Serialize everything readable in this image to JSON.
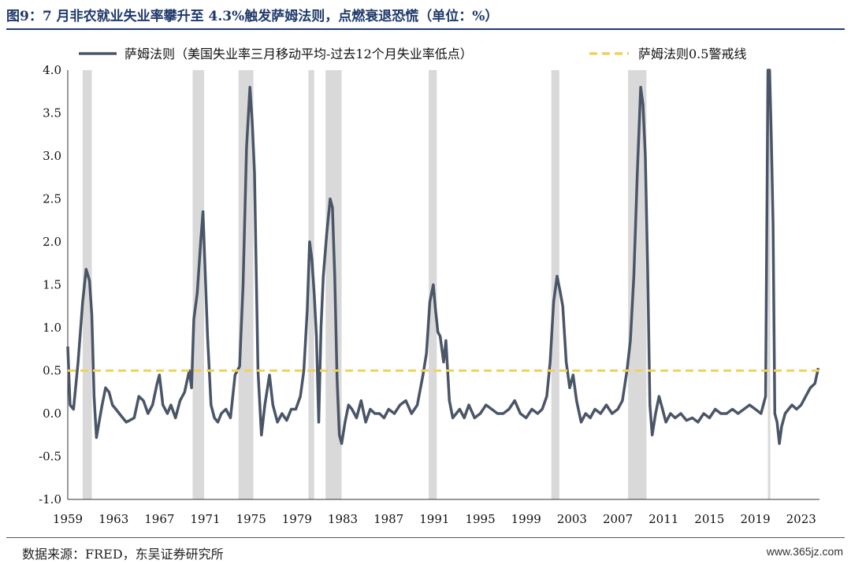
{
  "title": "图9：7 月非农就业失业率攀升至 4.3%触发萨姆法则，点燃衰退恐慌（单位：%）",
  "source": "数据来源：FRED，东吴证券研究所",
  "watermark": "www.365jz.com",
  "colors": {
    "line": "#4a5568",
    "threshold": "#f2d15a",
    "recession": "#d9d9d9",
    "title": "#1f3a6b"
  },
  "chart_data": {
    "type": "line",
    "xlabel": "",
    "ylabel": "",
    "xlim": [
      1959.0,
      2024.6
    ],
    "ylim": [
      -1.0,
      4.0
    ],
    "yticks": [
      4.0,
      3.5,
      3.0,
      2.5,
      2.0,
      1.5,
      1.0,
      0.5,
      0.0,
      -0.5,
      -1.0
    ],
    "ytick_labels": [
      "4.0",
      "3.5",
      "3.0",
      "2.5",
      "2.0",
      "1.5",
      "1.0",
      "0.5",
      "0.0",
      "-0.5",
      "-1.0"
    ],
    "xtick_labels": [
      "1959",
      "1963",
      "1967",
      "1971",
      "1975",
      "1979",
      "1983",
      "1987",
      "1991",
      "1995",
      "1999",
      "2003",
      "2007",
      "2011",
      "2015",
      "2019",
      "2023"
    ],
    "legend_position": "top",
    "series": [
      {
        "name": "萨姆法则（美国失业率三月移动平均-过去12个月失业率低点）",
        "style": "solid",
        "x": [
          1959.0,
          1959.2,
          1959.5,
          1959.9,
          1960.3,
          1960.6,
          1960.9,
          1961.1,
          1961.3,
          1961.5,
          1961.8,
          1962.0,
          1962.3,
          1962.6,
          1962.9,
          1963.2,
          1963.5,
          1963.8,
          1964.1,
          1964.4,
          1964.8,
          1965.2,
          1965.6,
          1966.0,
          1966.4,
          1966.8,
          1967.0,
          1967.3,
          1967.7,
          1968.0,
          1968.4,
          1968.8,
          1969.2,
          1969.6,
          1969.8,
          1970.0,
          1970.3,
          1970.6,
          1970.8,
          1970.95,
          1971.2,
          1971.5,
          1971.8,
          1972.1,
          1972.4,
          1972.8,
          1973.2,
          1973.6,
          1974.0,
          1974.3,
          1974.6,
          1974.9,
          1975.1,
          1975.3,
          1975.6,
          1975.9,
          1976.2,
          1976.6,
          1976.9,
          1977.3,
          1977.7,
          1978.1,
          1978.5,
          1978.9,
          1979.3,
          1979.6,
          1979.9,
          1980.1,
          1980.3,
          1980.5,
          1980.7,
          1980.9,
          1981.1,
          1981.3,
          1981.6,
          1981.9,
          1982.1,
          1982.3,
          1982.5,
          1982.7,
          1982.9,
          1983.2,
          1983.5,
          1983.8,
          1984.2,
          1984.6,
          1985.0,
          1985.4,
          1985.8,
          1986.2,
          1986.6,
          1987.0,
          1987.5,
          1988.0,
          1988.5,
          1989.0,
          1989.5,
          1990.0,
          1990.3,
          1990.6,
          1990.9,
          1991.1,
          1991.3,
          1991.5,
          1991.8,
          1992.0,
          1992.3,
          1992.6,
          1992.9,
          1993.2,
          1993.6,
          1994.0,
          1994.5,
          1995.0,
          1995.5,
          1996.0,
          1996.5,
          1997.0,
          1997.5,
          1998.0,
          1998.5,
          1999.0,
          1999.5,
          2000.0,
          2000.4,
          2000.8,
          2001.1,
          2001.4,
          2001.7,
          2002.0,
          2002.2,
          2002.5,
          2002.8,
          2003.1,
          2003.4,
          2003.8,
          2004.2,
          2004.6,
          2005.0,
          2005.5,
          2006.0,
          2006.5,
          2007.0,
          2007.4,
          2007.8,
          2008.1,
          2008.4,
          2008.7,
          2009.0,
          2009.2,
          2009.4,
          2009.6,
          2009.8,
          2010.0,
          2010.3,
          2010.6,
          2010.9,
          2011.2,
          2011.6,
          2012.0,
          2012.5,
          2013.0,
          2013.5,
          2014.0,
          2014.5,
          2015.0,
          2015.5,
          2016.0,
          2016.5,
          2017.0,
          2017.5,
          2018.0,
          2018.5,
          2019.0,
          2019.5,
          2019.9,
          2020.1,
          2020.25,
          2020.4,
          2020.55,
          2020.7,
          2020.9,
          2021.1,
          2021.3,
          2021.6,
          2021.9,
          2022.2,
          2022.6,
          2023.0,
          2023.4,
          2023.8,
          2024.2,
          2024.5
        ],
        "values": [
          0.78,
          0.1,
          0.05,
          0.6,
          1.3,
          1.68,
          1.55,
          1.15,
          0.2,
          -0.28,
          -0.05,
          0.1,
          0.3,
          0.25,
          0.1,
          0.05,
          0.0,
          -0.05,
          -0.1,
          -0.08,
          -0.05,
          0.2,
          0.15,
          0.0,
          0.1,
          0.35,
          0.45,
          0.1,
          0.0,
          0.1,
          -0.05,
          0.15,
          0.25,
          0.5,
          0.3,
          1.1,
          1.4,
          2.0,
          2.35,
          1.8,
          0.9,
          0.1,
          -0.05,
          -0.1,
          0.0,
          0.05,
          -0.05,
          0.45,
          0.55,
          1.5,
          3.1,
          3.8,
          3.4,
          2.8,
          0.5,
          -0.25,
          0.1,
          0.45,
          0.1,
          -0.1,
          0.0,
          -0.08,
          0.05,
          0.05,
          0.2,
          0.5,
          1.2,
          2.0,
          1.8,
          1.4,
          0.9,
          -0.1,
          1.0,
          1.6,
          2.1,
          2.5,
          2.4,
          1.6,
          0.4,
          -0.25,
          -0.35,
          -0.1,
          0.1,
          0.05,
          -0.05,
          0.15,
          -0.1,
          0.05,
          0.0,
          0.0,
          -0.05,
          0.05,
          0.0,
          0.1,
          0.15,
          0.0,
          0.1,
          0.45,
          0.7,
          1.3,
          1.5,
          1.2,
          0.95,
          0.9,
          0.6,
          0.85,
          0.15,
          -0.05,
          0.0,
          0.05,
          -0.05,
          0.1,
          -0.05,
          0.0,
          0.1,
          0.05,
          0.0,
          0.0,
          0.05,
          0.15,
          0.0,
          -0.05,
          0.05,
          0.0,
          0.05,
          0.2,
          0.6,
          1.3,
          1.6,
          1.4,
          1.25,
          0.6,
          0.3,
          0.45,
          0.15,
          -0.1,
          0.0,
          -0.05,
          0.05,
          0.0,
          0.1,
          0.0,
          0.05,
          0.15,
          0.5,
          0.85,
          1.6,
          2.8,
          3.8,
          3.6,
          3.0,
          1.7,
          0.1,
          -0.25,
          0.0,
          0.2,
          0.05,
          -0.1,
          0.0,
          -0.05,
          0.0,
          -0.08,
          -0.05,
          -0.1,
          0.0,
          -0.05,
          0.05,
          0.0,
          0.0,
          0.05,
          0.0,
          0.05,
          0.1,
          0.05,
          0.0,
          0.2,
          4.0,
          4.0,
          3.2,
          2.2,
          0.0,
          -0.1,
          -0.35,
          -0.15,
          0.0,
          0.05,
          0.1,
          0.05,
          0.1,
          0.2,
          0.3,
          0.35,
          0.53
        ]
      },
      {
        "name": "萨姆法则0.5警戒线",
        "style": "dashed",
        "value": 0.5
      }
    ],
    "recessions": [
      [
        1960.3,
        1961.1
      ],
      [
        1969.9,
        1970.9
      ],
      [
        1973.9,
        1975.2
      ],
      [
        1980.0,
        1980.5
      ],
      [
        1981.5,
        1982.9
      ],
      [
        1990.5,
        1991.2
      ],
      [
        2001.2,
        2001.9
      ],
      [
        2007.9,
        2009.5
      ],
      [
        2020.1,
        2020.3
      ]
    ]
  }
}
